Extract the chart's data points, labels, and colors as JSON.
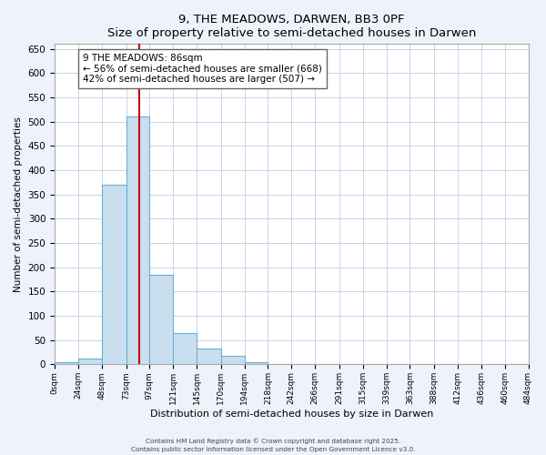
{
  "title": "9, THE MEADOWS, DARWEN, BB3 0PF",
  "subtitle": "Size of property relative to semi-detached houses in Darwen",
  "xlabel": "Distribution of semi-detached houses by size in Darwen",
  "ylabel": "Number of semi-detached properties",
  "bar_edges": [
    0,
    24,
    48,
    73,
    97,
    121,
    145,
    170,
    194,
    218,
    242,
    266,
    291,
    315,
    339,
    363,
    388,
    412,
    436,
    460,
    484
  ],
  "bar_heights": [
    5,
    12,
    370,
    510,
    185,
    65,
    32,
    17,
    5,
    0,
    0,
    0,
    0,
    0,
    0,
    0,
    0,
    0,
    0,
    0
  ],
  "bar_color": "#c9dff0",
  "bar_edge_color": "#6aafd4",
  "vline_x": 86,
  "vline_color": "#cc0000",
  "ylim": [
    0,
    660
  ],
  "yticks": [
    0,
    50,
    100,
    150,
    200,
    250,
    300,
    350,
    400,
    450,
    500,
    550,
    600,
    650
  ],
  "tick_labels": [
    "0sqm",
    "24sqm",
    "48sqm",
    "73sqm",
    "97sqm",
    "121sqm",
    "145sqm",
    "170sqm",
    "194sqm",
    "218sqm",
    "242sqm",
    "266sqm",
    "291sqm",
    "315sqm",
    "339sqm",
    "363sqm",
    "388sqm",
    "412sqm",
    "436sqm",
    "460sqm",
    "484sqm"
  ],
  "annotation_title": "9 THE MEADOWS: 86sqm",
  "annotation_line1": "← 56% of semi-detached houses are smaller (668)",
  "annotation_line2": "42% of semi-detached houses are larger (507) →",
  "footer1": "Contains HM Land Registry data © Crown copyright and database right 2025.",
  "footer2": "Contains public sector information licensed under the Open Government Licence v3.0.",
  "bg_color": "#eef2fb",
  "plot_bg_color": "#ffffff",
  "grid_color": "#c8d4e8"
}
